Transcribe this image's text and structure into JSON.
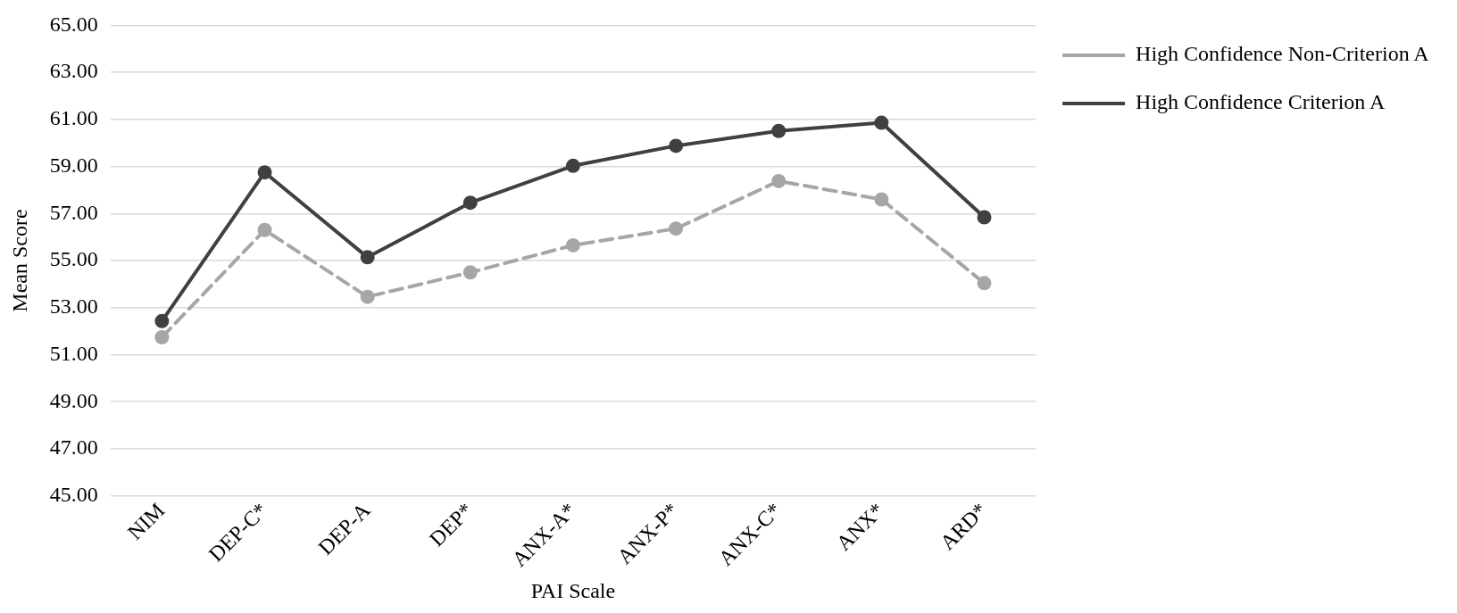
{
  "chart_data": {
    "type": "line",
    "xlabel": "PAI Scale",
    "ylabel": "Mean Score",
    "categories": [
      "NIM",
      "DEP-C*",
      "DEP-A",
      "DEP*",
      "ANX-A*",
      "ANX-P*",
      "ANX-C*",
      "ANX*",
      "ARD*"
    ],
    "series": [
      {
        "name": "High Confidence Non-Criterion A",
        "color": "#a6a6a6",
        "line_style": "dashed",
        "values": [
          51.74,
          56.3,
          53.46,
          54.5,
          55.65,
          56.36,
          58.38,
          57.6,
          54.04
        ]
      },
      {
        "name": "High Confidence Criterion A",
        "color": "#404040",
        "line_style": "solid",
        "values": [
          52.43,
          58.75,
          55.14,
          57.46,
          59.03,
          59.88,
          60.51,
          60.86,
          56.84
        ]
      }
    ],
    "ylim": [
      45,
      65
    ],
    "yticks": [
      {
        "value": 45,
        "label": "45.00"
      },
      {
        "value": 47,
        "label": "47.00"
      },
      {
        "value": 49,
        "label": "49.00"
      },
      {
        "value": 51,
        "label": "51.00"
      },
      {
        "value": 53,
        "label": "53.00"
      },
      {
        "value": 55,
        "label": "55.00"
      },
      {
        "value": 57,
        "label": "57.00"
      },
      {
        "value": 59,
        "label": "59.00"
      },
      {
        "value": 61,
        "label": "61.00"
      },
      {
        "value": 63,
        "label": "63.00"
      },
      {
        "value": 65,
        "label": "65.00"
      }
    ],
    "grid": "y",
    "legend": "right",
    "marker": "circle"
  }
}
